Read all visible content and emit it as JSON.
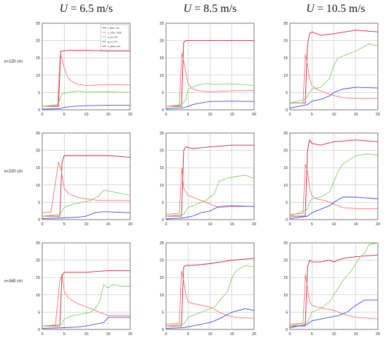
{
  "columns": [
    {
      "var": "U",
      "rest": " = 6.5 m/s"
    },
    {
      "var": "U",
      "rest": " = 8.5 m/s"
    },
    {
      "var": "U",
      "rest": " = 10.5 m/s"
    }
  ],
  "rows": [
    "x=120 cm",
    "x=220 cm",
    "x=340 cm"
  ],
  "legend_entries": [
    "f_dom, Hz",
    "u_rms, cm/s",
    "u_k x 10",
    "q_k x 10",
    "λ_dom, cm"
  ],
  "colors": {
    "red": "#cc1f3a",
    "pink": "#ff6f6f",
    "green": "#7cd25e",
    "blue": "#3a4de0",
    "grid": "#b4b4b4"
  },
  "chart_data": [
    {
      "type": "line",
      "row": "x=120 cm",
      "column": "U = 6.5 m/s",
      "xlim": [
        0,
        20
      ],
      "ylim": [
        0,
        25
      ],
      "xticks": [
        0,
        5,
        10,
        15,
        20
      ],
      "yticks": [
        0,
        5,
        10,
        15,
        20,
        25
      ],
      "grid": true,
      "legend": "top-right",
      "series": [
        {
          "color": "red",
          "x": [
            0,
            3.7,
            4.2,
            4.5,
            6,
            10,
            15,
            20
          ],
          "y": [
            1,
            1,
            17,
            17,
            17.2,
            17.2,
            17,
            17
          ]
        },
        {
          "color": "pink",
          "x": [
            0,
            3.5,
            4.1,
            4.5,
            5,
            6,
            7,
            8,
            10,
            15,
            20
          ],
          "y": [
            1,
            1.2,
            16,
            15,
            12,
            9,
            8,
            7.4,
            7,
            7.3,
            7.2
          ]
        },
        {
          "color": "green",
          "x": [
            0,
            3.5,
            4.5,
            5,
            6,
            8,
            10,
            15,
            20
          ],
          "y": [
            1,
            1.5,
            4.5,
            4.8,
            5,
            5.5,
            5.1,
            5.2,
            5
          ]
        },
        {
          "color": "blue",
          "x": [
            0,
            4,
            5,
            7,
            10,
            15,
            20
          ],
          "y": [
            0.2,
            0.3,
            0.7,
            1,
            1.2,
            1.3,
            1.3
          ]
        }
      ]
    },
    {
      "type": "line",
      "row": "x=120 cm",
      "column": "U = 8.5 m/s",
      "xlim": [
        0,
        20
      ],
      "ylim": [
        0,
        25
      ],
      "xticks": [
        0,
        5,
        10,
        15,
        20
      ],
      "yticks": [
        0,
        5,
        10,
        15,
        20,
        25
      ],
      "grid": true,
      "series": [
        {
          "color": "red",
          "x": [
            0,
            3.5,
            4,
            4.5,
            6,
            10,
            15,
            20
          ],
          "y": [
            1,
            1,
            19.5,
            20,
            20,
            20,
            20,
            20
          ]
        },
        {
          "color": "pink",
          "x": [
            0,
            3,
            3.6,
            4,
            4.5,
            5,
            6,
            8,
            10,
            15,
            20
          ],
          "y": [
            1,
            1.2,
            16.5,
            14,
            11,
            7.5,
            6,
            5.4,
            5.2,
            5.5,
            5.6
          ]
        },
        {
          "color": "green",
          "x": [
            0,
            3.5,
            4.5,
            5,
            7,
            9,
            11,
            15,
            20
          ],
          "y": [
            1,
            1.5,
            3,
            6,
            7,
            7.6,
            7.3,
            7.5,
            7
          ]
        },
        {
          "color": "blue",
          "x": [
            0,
            4,
            5,
            6,
            8,
            10,
            15,
            20
          ],
          "y": [
            0.3,
            0.6,
            1,
            1.5,
            2,
            2.4,
            2.5,
            2.4
          ]
        }
      ]
    },
    {
      "type": "line",
      "row": "x=120 cm",
      "column": "U = 10.5 m/s",
      "xlim": [
        0,
        20
      ],
      "ylim": [
        0,
        25
      ],
      "xticks": [
        0,
        5,
        10,
        15,
        20
      ],
      "yticks": [
        0,
        5,
        10,
        15,
        20,
        25
      ],
      "grid": true,
      "series": [
        {
          "color": "red",
          "x": [
            0,
            3.5,
            4,
            4.5,
            5,
            7,
            10,
            15,
            20
          ],
          "y": [
            2,
            2,
            19,
            22,
            22.5,
            21.5,
            22,
            23,
            22.5
          ]
        },
        {
          "color": "pink",
          "x": [
            0,
            3,
            3.5,
            4,
            4.5,
            5,
            6,
            7,
            9,
            12,
            15,
            20
          ],
          "y": [
            2,
            2,
            16,
            13,
            9,
            7,
            6,
            5.5,
            4.5,
            3.5,
            3.3,
            3.3
          ]
        },
        {
          "color": "green",
          "x": [
            0,
            3.5,
            4.5,
            5,
            7,
            9,
            10,
            11,
            15,
            18,
            20
          ],
          "y": [
            2,
            3,
            5,
            6,
            6.5,
            9,
            13,
            15,
            17,
            19,
            18.5
          ]
        },
        {
          "color": "blue",
          "x": [
            0,
            4,
            5,
            7,
            9,
            10,
            12,
            15,
            20
          ],
          "y": [
            0.5,
            1.5,
            2.5,
            3,
            4,
            5,
            6,
            6.5,
            6.3
          ]
        }
      ]
    },
    {
      "type": "line",
      "row": "x=220 cm",
      "column": "U = 6.5 m/s",
      "xlim": [
        0,
        20
      ],
      "ylim": [
        0,
        25
      ],
      "xticks": [
        0,
        5,
        10,
        15,
        20
      ],
      "yticks": [
        0,
        5,
        10,
        15,
        20,
        25
      ],
      "grid": true,
      "series": [
        {
          "color": "red",
          "x": [
            0,
            4,
            4.5,
            5,
            6,
            10,
            15,
            20
          ],
          "y": [
            1,
            1,
            16.5,
            18.5,
            18.5,
            18.5,
            18.5,
            18
          ]
        },
        {
          "color": "pink",
          "x": [
            0,
            2,
            3.7,
            4.2,
            5,
            6,
            8,
            10,
            13,
            15,
            20
          ],
          "y": [
            2,
            2.2,
            16.5,
            15,
            9,
            7.5,
            6.5,
            6,
            5.5,
            5.5,
            5.5
          ]
        },
        {
          "color": "green",
          "x": [
            0,
            4,
            5,
            7,
            9,
            11,
            13,
            14,
            16,
            18,
            20
          ],
          "y": [
            1,
            1.5,
            3.5,
            4.5,
            5,
            5.5,
            7,
            8.5,
            8,
            7.5,
            7
          ]
        },
        {
          "color": "blue",
          "x": [
            0,
            5,
            8,
            10,
            12,
            14,
            20
          ],
          "y": [
            0.3,
            0.5,
            0.7,
            1,
            2,
            2.3,
            2
          ]
        }
      ]
    },
    {
      "type": "line",
      "row": "x=220 cm",
      "column": "U = 8.5 m/s",
      "xlim": [
        0,
        20
      ],
      "ylim": [
        0,
        25
      ],
      "xticks": [
        0,
        5,
        10,
        15,
        20
      ],
      "yticks": [
        0,
        5,
        10,
        15,
        20,
        25
      ],
      "grid": true,
      "series": [
        {
          "color": "red",
          "x": [
            0,
            3.5,
            4,
            4.5,
            6,
            10,
            15,
            20
          ],
          "y": [
            1,
            1,
            20,
            21,
            20.5,
            21,
            21.5,
            21.5
          ]
        },
        {
          "color": "pink",
          "x": [
            0,
            3,
            3.6,
            4,
            5,
            6,
            8,
            10,
            12,
            15,
            20
          ],
          "y": [
            1.5,
            1.8,
            15,
            9,
            7,
            6.5,
            5.5,
            4.5,
            3.5,
            3.8,
            3.8
          ]
        },
        {
          "color": "green",
          "x": [
            0,
            4,
            5,
            7,
            9,
            11,
            12,
            14,
            16,
            18,
            20
          ],
          "y": [
            1,
            1.5,
            3.5,
            4.5,
            5.5,
            7.5,
            11,
            12,
            12.5,
            12.8,
            12
          ]
        },
        {
          "color": "blue",
          "x": [
            0,
            4,
            6,
            8,
            10,
            12,
            15,
            20
          ],
          "y": [
            0.2,
            0.5,
            1,
            2,
            2.5,
            3.8,
            4,
            3.8
          ]
        }
      ]
    },
    {
      "type": "line",
      "row": "x=220 cm",
      "column": "U = 10.5 m/s",
      "xlim": [
        0,
        20
      ],
      "ylim": [
        0,
        25
      ],
      "xticks": [
        0,
        5,
        10,
        15,
        20
      ],
      "yticks": [
        0,
        5,
        10,
        15,
        20,
        25
      ],
      "grid": true,
      "series": [
        {
          "color": "red",
          "x": [
            0,
            3.5,
            4,
            4.5,
            5,
            7,
            10,
            15,
            20
          ],
          "y": [
            1,
            1,
            20,
            23,
            22,
            21.5,
            22.5,
            23,
            22.5
          ]
        },
        {
          "color": "pink",
          "x": [
            0,
            3,
            3.5,
            4,
            4.5,
            5,
            6,
            8,
            10,
            12,
            15,
            20
          ],
          "y": [
            1.5,
            1.8,
            16,
            14,
            9,
            7,
            6,
            5.5,
            4.5,
            3.5,
            3.2,
            3.2
          ]
        },
        {
          "color": "green",
          "x": [
            0,
            4,
            4.5,
            5,
            7,
            9,
            10,
            11,
            12,
            15,
            18,
            20
          ],
          "y": [
            1,
            3,
            5,
            6,
            6.5,
            8,
            11,
            14,
            16,
            18.5,
            19,
            18.5
          ]
        },
        {
          "color": "blue",
          "x": [
            0,
            4,
            5,
            7,
            9,
            10,
            12,
            15,
            20
          ],
          "y": [
            0.3,
            1,
            2,
            3,
            4,
            5,
            6.5,
            6.5,
            6
          ]
        }
      ]
    },
    {
      "type": "line",
      "row": "x=340 cm",
      "column": "U = 6.5 m/s",
      "xlim": [
        0,
        20
      ],
      "ylim": [
        0,
        25
      ],
      "xticks": [
        0,
        5,
        10,
        15,
        20
      ],
      "yticks": [
        0,
        5,
        10,
        15,
        20,
        25
      ],
      "grid": true,
      "series": [
        {
          "color": "red",
          "x": [
            0,
            4,
            4.5,
            5,
            6,
            10,
            15,
            20
          ],
          "y": [
            1,
            1,
            15.5,
            16.5,
            16.5,
            16.5,
            17,
            17
          ]
        },
        {
          "color": "pink",
          "x": [
            0,
            3,
            4,
            4.5,
            5,
            6,
            8,
            10,
            12,
            14,
            15,
            20
          ],
          "y": [
            1,
            1.2,
            14,
            16,
            11,
            9,
            7.5,
            6.5,
            5.5,
            4.5,
            4,
            4
          ]
        },
        {
          "color": "green",
          "x": [
            0,
            4.5,
            5,
            7,
            9,
            11,
            12,
            13,
            14,
            15,
            16,
            18,
            20
          ],
          "y": [
            1,
            1.5,
            3,
            4,
            4.5,
            5,
            6,
            8,
            13,
            12,
            13,
            12.5,
            12.5
          ]
        },
        {
          "color": "blue",
          "x": [
            0,
            5,
            8,
            10,
            12,
            14,
            15,
            20
          ],
          "y": [
            0.3,
            0.5,
            0.7,
            1,
            1.5,
            2,
            3.5,
            3.5
          ]
        }
      ]
    },
    {
      "type": "line",
      "row": "x=340 cm",
      "column": "U = 8.5 m/s",
      "xlim": [
        0,
        20
      ],
      "ylim": [
        0,
        25
      ],
      "xticks": [
        0,
        5,
        10,
        15,
        20
      ],
      "yticks": [
        0,
        5,
        10,
        15,
        20,
        25
      ],
      "grid": true,
      "series": [
        {
          "color": "red",
          "x": [
            0,
            3.5,
            4,
            4.5,
            6,
            10,
            15,
            20
          ],
          "y": [
            1,
            1,
            18,
            18.5,
            18.5,
            19,
            20,
            20.5
          ]
        },
        {
          "color": "pink",
          "x": [
            0,
            3,
            3.5,
            4,
            4.5,
            5,
            6,
            8,
            10,
            12,
            14,
            16,
            20
          ],
          "y": [
            1.5,
            1.8,
            17,
            14,
            10,
            8,
            7.5,
            7,
            6.5,
            5,
            4,
            3.5,
            3.2
          ]
        },
        {
          "color": "green",
          "x": [
            0,
            4,
            5,
            7,
            9,
            11,
            12,
            14,
            15,
            16,
            18,
            20
          ],
          "y": [
            1,
            1.5,
            3.5,
            4.5,
            5.5,
            6.5,
            8,
            11,
            15,
            17,
            18.5,
            18
          ]
        },
        {
          "color": "blue",
          "x": [
            0,
            4,
            6,
            8,
            10,
            12,
            15,
            18,
            20
          ],
          "y": [
            0.3,
            0.5,
            1,
            1.5,
            2,
            3,
            5,
            6,
            5.5
          ]
        }
      ]
    },
    {
      "type": "line",
      "row": "x=340 cm",
      "column": "U = 10.5 m/s",
      "xlim": [
        0,
        20
      ],
      "ylim": [
        0,
        25
      ],
      "xticks": [
        0,
        5,
        10,
        15,
        20
      ],
      "yticks": [
        0,
        5,
        10,
        15,
        20,
        25
      ],
      "grid": true,
      "series": [
        {
          "color": "red",
          "x": [
            0,
            3.5,
            4,
            4.5,
            5,
            7,
            9,
            10,
            12,
            15,
            20
          ],
          "y": [
            1,
            1,
            18,
            20,
            19.5,
            19.5,
            20,
            19.5,
            20.5,
            21,
            21.5
          ]
        },
        {
          "color": "pink",
          "x": [
            0,
            3,
            3.5,
            4,
            4.5,
            5,
            6,
            8,
            10,
            12,
            15,
            18,
            20
          ],
          "y": [
            1.5,
            1.8,
            16,
            12,
            8,
            7,
            6.5,
            6,
            5.5,
            4.5,
            3.5,
            3.3,
            3
          ]
        },
        {
          "color": "green",
          "x": [
            0,
            4,
            5,
            7,
            9,
            11,
            12,
            14,
            16,
            17,
            18,
            20
          ],
          "y": [
            1,
            2,
            5,
            6,
            8,
            12,
            14,
            17,
            21,
            22,
            24.5,
            25
          ]
        },
        {
          "color": "blue",
          "x": [
            0,
            4,
            5,
            7,
            9,
            11,
            13,
            15,
            17,
            20
          ],
          "y": [
            0.5,
            1.5,
            2.5,
            3,
            3.5,
            4,
            5,
            7,
            8.5,
            8.5
          ]
        }
      ]
    }
  ]
}
